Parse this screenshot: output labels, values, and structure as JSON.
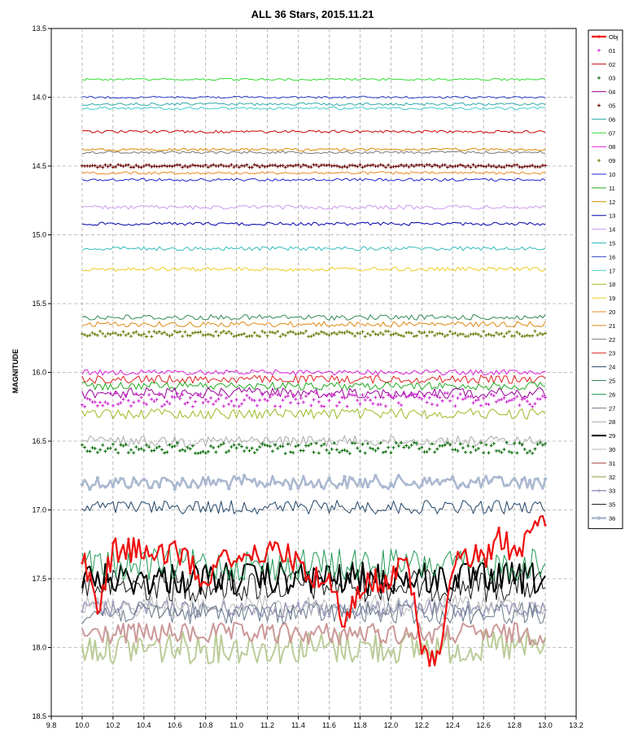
{
  "chart_data": {
    "type": "line",
    "title": "ALL 36 Stars, 2015.11.21",
    "xlabel": "",
    "ylabel": "MAGNITUDE",
    "xlim": [
      9.8,
      13.2
    ],
    "ylim": [
      13.5,
      18.5
    ],
    "y_inverted": true,
    "grid": true,
    "legend_position": "right",
    "x_ticks": [
      "9.8",
      "10.0",
      "10.2",
      "10.4",
      "10.6",
      "10.8",
      "11.0",
      "11.2",
      "11.4",
      "11.6",
      "11.8",
      "12.0",
      "12.2",
      "12.4",
      "12.6",
      "12.8",
      "13.0",
      "13.2"
    ],
    "y_ticks": [
      "13.5",
      "14.0",
      "14.5",
      "15.0",
      "15.5",
      "16.0",
      "16.5",
      "17.0",
      "17.5",
      "18.0",
      "18.5"
    ],
    "x_ticks_values": [
      9.8,
      10.0,
      10.2,
      10.4,
      10.6,
      10.8,
      11.0,
      11.2,
      11.4,
      11.6,
      11.8,
      12.0,
      12.2,
      12.4,
      12.6,
      12.8,
      13.0,
      13.2
    ],
    "y_ticks_values": [
      13.5,
      14.0,
      14.5,
      15.0,
      15.5,
      16.0,
      16.5,
      17.0,
      17.5,
      18.0,
      18.5
    ],
    "series": [
      {
        "name": "Obj",
        "base": 17.4,
        "noise": 0.2,
        "style": "line-marker",
        "color": "#ee1111",
        "width": 2.2,
        "marker": "plus",
        "points": [
          [
            10.0,
            17.3
          ],
          [
            10.1,
            17.7
          ],
          [
            10.2,
            17.3
          ],
          [
            10.3,
            17.3
          ],
          [
            10.4,
            17.3
          ],
          [
            10.5,
            17.3
          ],
          [
            10.6,
            17.3
          ],
          [
            10.7,
            17.4
          ],
          [
            10.8,
            17.5
          ],
          [
            10.9,
            17.3
          ],
          [
            11.0,
            17.4
          ],
          [
            11.1,
            17.3
          ],
          [
            11.2,
            17.3
          ],
          [
            11.3,
            17.3
          ],
          [
            11.4,
            17.4
          ],
          [
            11.5,
            17.5
          ],
          [
            11.6,
            17.5
          ],
          [
            11.7,
            17.8
          ],
          [
            11.8,
            17.6
          ],
          [
            11.9,
            17.5
          ],
          [
            12.0,
            17.5
          ],
          [
            12.1,
            17.4
          ],
          [
            12.2,
            18.0
          ],
          [
            12.3,
            18.1
          ],
          [
            12.4,
            17.4
          ],
          [
            12.5,
            17.3
          ],
          [
            12.6,
            17.4
          ],
          [
            12.7,
            17.2
          ],
          [
            12.8,
            17.3
          ],
          [
            12.9,
            17.2
          ],
          [
            13.0,
            17.1
          ]
        ]
      },
      {
        "name": "01",
        "base": 16.2,
        "noise": 0.05,
        "style": "marker",
        "color": "#cc22cc",
        "width": 1,
        "marker": "plus"
      },
      {
        "name": "02",
        "base": 14.25,
        "noise": 0.01,
        "style": "line",
        "color": "#cc0000",
        "width": 1
      },
      {
        "name": "03",
        "base": 16.55,
        "noise": 0.04,
        "style": "marker",
        "color": "#006600",
        "width": 1,
        "marker": "plus"
      },
      {
        "name": "04",
        "base": 16.15,
        "noise": 0.04,
        "style": "line",
        "color": "#990099",
        "width": 1
      },
      {
        "name": "05",
        "base": 14.5,
        "noise": 0.01,
        "style": "marker",
        "color": "#660000",
        "width": 1,
        "marker": "plus"
      },
      {
        "name": "06",
        "base": 14.05,
        "noise": 0.01,
        "style": "line",
        "color": "#33aaaa",
        "width": 1
      },
      {
        "name": "07",
        "base": 13.87,
        "noise": 0.008,
        "style": "line",
        "color": "#33dd33",
        "width": 1
      },
      {
        "name": "08",
        "base": 16.0,
        "noise": 0.02,
        "style": "line",
        "color": "#dd22dd",
        "width": 1
      },
      {
        "name": "09",
        "base": 15.72,
        "noise": 0.02,
        "style": "marker",
        "color": "#667700",
        "width": 1,
        "marker": "plus"
      },
      {
        "name": "10",
        "base": 14.6,
        "noise": 0.01,
        "style": "line",
        "color": "#2222cc",
        "width": 1
      },
      {
        "name": "11",
        "base": 16.1,
        "noise": 0.03,
        "style": "line",
        "color": "#22aa22",
        "width": 1
      },
      {
        "name": "12",
        "base": 14.38,
        "noise": 0.01,
        "style": "line",
        "color": "#dd8800",
        "width": 1
      },
      {
        "name": "13",
        "base": 14.92,
        "noise": 0.012,
        "style": "line",
        "color": "#0000aa",
        "width": 1
      },
      {
        "name": "14",
        "base": 14.8,
        "noise": 0.015,
        "style": "line",
        "color": "#cc99ee",
        "width": 1
      },
      {
        "name": "15",
        "base": 15.1,
        "noise": 0.015,
        "style": "line",
        "color": "#33bbbb",
        "width": 1
      },
      {
        "name": "16",
        "base": 14.0,
        "noise": 0.008,
        "style": "line",
        "color": "#3344cc",
        "width": 1
      },
      {
        "name": "17",
        "base": 14.08,
        "noise": 0.01,
        "style": "line",
        "color": "#44cccc",
        "width": 1
      },
      {
        "name": "18",
        "base": 16.3,
        "noise": 0.04,
        "style": "line",
        "color": "#99bb22",
        "width": 1
      },
      {
        "name": "19",
        "base": 15.25,
        "noise": 0.015,
        "style": "line",
        "color": "#eecc22",
        "width": 1
      },
      {
        "name": "20",
        "base": 14.55,
        "noise": 0.01,
        "style": "line",
        "color": "#ee8822",
        "width": 1
      },
      {
        "name": "21",
        "base": 15.65,
        "noise": 0.02,
        "style": "line",
        "color": "#dd8811",
        "width": 1
      },
      {
        "name": "22",
        "base": 14.4,
        "noise": 0.01,
        "style": "line",
        "color": "#777777",
        "width": 1
      },
      {
        "name": "23",
        "base": 16.05,
        "noise": 0.03,
        "style": "line",
        "color": "#dd2222",
        "width": 1
      },
      {
        "name": "24",
        "base": 16.98,
        "noise": 0.05,
        "style": "line",
        "color": "#224466",
        "width": 1
      },
      {
        "name": "25",
        "base": 15.6,
        "noise": 0.02,
        "style": "line",
        "color": "#338855",
        "width": 1
      },
      {
        "name": "26",
        "base": 17.4,
        "noise": 0.12,
        "style": "line",
        "color": "#229955",
        "width": 1
      },
      {
        "name": "27",
        "base": 17.75,
        "noise": 0.08,
        "style": "line",
        "color": "#667788",
        "width": 1
      },
      {
        "name": "28",
        "base": 16.5,
        "noise": 0.04,
        "style": "line",
        "color": "#aaaaaa",
        "width": 1
      },
      {
        "name": "29",
        "base": 17.5,
        "noise": 0.12,
        "style": "line",
        "color": "#000000",
        "width": 2
      },
      {
        "name": "30",
        "base": 17.7,
        "noise": 0.08,
        "style": "line",
        "color": "#bbbbbb",
        "width": 1
      },
      {
        "name": "31",
        "base": 17.9,
        "noise": 0.08,
        "style": "line",
        "color": "#cc9999",
        "width": 2
      },
      {
        "name": "32",
        "base": 18.0,
        "noise": 0.12,
        "style": "line",
        "color": "#bbcc99",
        "width": 2
      },
      {
        "name": "33",
        "base": 17.72,
        "noise": 0.06,
        "style": "line-marker",
        "color": "#9999bb",
        "width": 1.5,
        "marker": "plus"
      },
      {
        "name": "35",
        "base": 17.55,
        "noise": 0.12,
        "style": "line",
        "color": "#111111",
        "width": 1
      },
      {
        "name": "36",
        "base": 16.8,
        "noise": 0.05,
        "style": "line-marker",
        "color": "#aab8d0",
        "width": 2.5,
        "marker": "dot"
      }
    ]
  }
}
